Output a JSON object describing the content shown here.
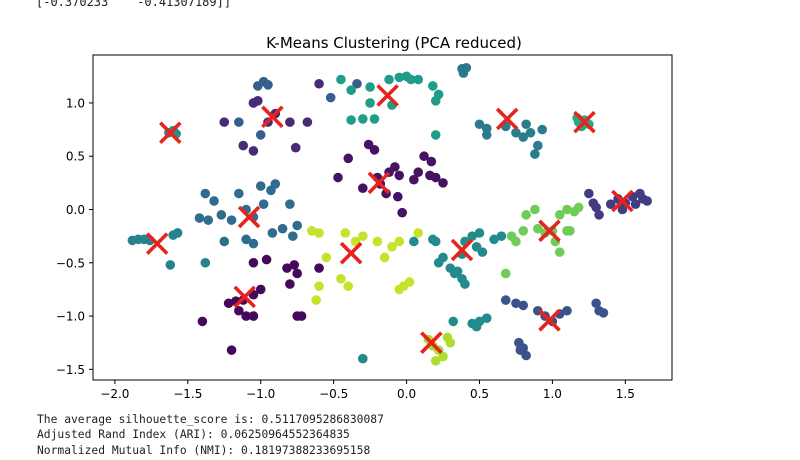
{
  "top_output": "[-0.370233    -0.41307189]]",
  "metrics": {
    "silhouette": "The average silhouette_score is: 0.5117095286830087",
    "ari": "Adjusted Rand Index (ARI): 0.06250964552364835",
    "nmi": "Normalized Mutual Info (NMI): 0.18197388233695158"
  },
  "chart_data": {
    "type": "scatter",
    "title": "K-Means Clustering (PCA reduced)",
    "xlabel": "",
    "ylabel": "",
    "xlim": [
      -2.15,
      1.82
    ],
    "ylim": [
      -1.6,
      1.45
    ],
    "x_ticks": [
      -2.0,
      -1.5,
      -1.0,
      -0.5,
      0.0,
      0.5,
      1.0,
      1.5
    ],
    "x_tick_labels": [
      "−2.0",
      "−1.5",
      "−1.0",
      "−0.5",
      "0.0",
      "0.5",
      "1.0",
      "1.5"
    ],
    "y_ticks": [
      1.0,
      0.5,
      0.0,
      -0.5,
      -1.0,
      -1.5
    ],
    "y_tick_labels": [
      "1.0",
      "0.5",
      "0.0",
      "−0.5",
      "−1.0",
      "−1.5"
    ],
    "grid": false,
    "colormap": "viridis",
    "centroid_color": "#e8231e",
    "centroids": [
      [
        -1.62,
        0.72
      ],
      [
        -0.92,
        0.87
      ],
      [
        -0.13,
        1.07
      ],
      [
        0.69,
        0.85
      ],
      [
        1.22,
        0.82
      ],
      [
        -0.19,
        0.25
      ],
      [
        -1.08,
        -0.07
      ],
      [
        -1.71,
        -0.32
      ],
      [
        -0.38,
        -0.41
      ],
      [
        0.38,
        -0.38
      ],
      [
        0.98,
        -0.2
      ],
      [
        1.48,
        0.08
      ],
      [
        -1.11,
        -0.82
      ],
      [
        0.98,
        -1.04
      ],
      [
        0.17,
        -1.25
      ]
    ],
    "points": [
      [
        -1.6,
        0.74,
        0.5
      ],
      [
        -1.63,
        0.72,
        0.5
      ],
      [
        -1.58,
        0.71,
        0.5
      ],
      [
        -1.05,
        1.0,
        0.12
      ],
      [
        -1.02,
        1.02,
        0.12
      ],
      [
        -0.95,
        0.82,
        0.12
      ],
      [
        -0.9,
        0.9,
        0.12
      ],
      [
        -1.12,
        0.6,
        0.12
      ],
      [
        -1.25,
        0.82,
        0.12
      ],
      [
        -0.8,
        0.82,
        0.12
      ],
      [
        -0.68,
        0.82,
        0.12
      ],
      [
        -0.76,
        0.58,
        0.12
      ],
      [
        -1.05,
        0.55,
        0.12
      ],
      [
        -0.6,
        1.18,
        0.12
      ],
      [
        -1.02,
        1.16,
        0.3
      ],
      [
        -0.98,
        1.2,
        0.3
      ],
      [
        -0.95,
        1.17,
        0.3
      ],
      [
        -0.52,
        1.05,
        0.3
      ],
      [
        -0.34,
        1.18,
        0.3
      ],
      [
        -1.15,
        0.82,
        0.3
      ],
      [
        -1.0,
        0.7,
        0.3
      ],
      [
        -0.45,
        1.22,
        0.55
      ],
      [
        -0.38,
        1.12,
        0.55
      ],
      [
        -0.25,
        1.0,
        0.55
      ],
      [
        -0.25,
        1.15,
        0.55
      ],
      [
        -0.12,
        1.22,
        0.55
      ],
      [
        -0.1,
        0.98,
        0.55
      ],
      [
        -0.05,
        1.24,
        0.55
      ],
      [
        0.0,
        1.25,
        0.55
      ],
      [
        0.03,
        1.22,
        0.55
      ],
      [
        0.08,
        1.22,
        0.55
      ],
      [
        0.18,
        1.16,
        0.55
      ],
      [
        0.2,
        1.02,
        0.55
      ],
      [
        0.22,
        1.08,
        0.55
      ],
      [
        -0.38,
        0.84,
        0.55
      ],
      [
        -0.3,
        0.85,
        0.55
      ],
      [
        -0.22,
        0.85,
        0.55
      ],
      [
        0.2,
        0.7,
        0.55
      ],
      [
        0.38,
        1.32,
        0.4
      ],
      [
        0.41,
        1.33,
        0.4
      ],
      [
        0.39,
        1.28,
        0.4
      ],
      [
        0.5,
        0.8,
        0.42
      ],
      [
        0.55,
        0.7,
        0.42
      ],
      [
        0.55,
        0.76,
        0.42
      ],
      [
        0.68,
        0.78,
        0.42
      ],
      [
        0.75,
        0.72,
        0.42
      ],
      [
        0.82,
        0.8,
        0.42
      ],
      [
        0.85,
        0.72,
        0.42
      ],
      [
        0.9,
        0.6,
        0.42
      ],
      [
        0.93,
        0.75,
        0.42
      ],
      [
        0.8,
        0.68,
        0.42
      ],
      [
        0.88,
        0.52,
        0.42
      ],
      [
        1.18,
        0.82,
        0.6
      ],
      [
        1.22,
        0.84,
        0.6
      ],
      [
        1.2,
        0.78,
        0.6
      ],
      [
        1.25,
        0.8,
        0.6
      ],
      [
        1.17,
        0.86,
        0.6
      ],
      [
        -0.18,
        0.24,
        0.05
      ],
      [
        -0.2,
        0.3,
        0.05
      ],
      [
        -0.12,
        0.35,
        0.05
      ],
      [
        -0.08,
        0.4,
        0.05
      ],
      [
        -0.05,
        0.32,
        0.05
      ],
      [
        0.05,
        0.28,
        0.05
      ],
      [
        0.08,
        0.35,
        0.05
      ],
      [
        0.16,
        0.32,
        0.05
      ],
      [
        0.2,
        0.3,
        0.05
      ],
      [
        0.25,
        0.25,
        0.05
      ],
      [
        -0.3,
        0.2,
        0.05
      ],
      [
        -0.14,
        0.15,
        0.05
      ],
      [
        -0.06,
        0.12,
        0.05
      ],
      [
        -0.03,
        -0.03,
        0.05
      ],
      [
        -0.22,
        0.56,
        0.05
      ],
      [
        -0.26,
        0.61,
        0.05
      ],
      [
        -0.47,
        0.3,
        0.05
      ],
      [
        -0.4,
        0.48,
        0.05
      ],
      [
        0.12,
        0.5,
        0.05
      ],
      [
        0.17,
        0.45,
        0.05
      ],
      [
        -1.38,
        0.15,
        0.35
      ],
      [
        -1.32,
        0.08,
        0.35
      ],
      [
        -1.27,
        -0.05,
        0.35
      ],
      [
        -1.2,
        -0.1,
        0.35
      ],
      [
        -1.15,
        0.15,
        0.35
      ],
      [
        -1.0,
        0.22,
        0.35
      ],
      [
        -0.93,
        0.18,
        0.35
      ],
      [
        -0.9,
        0.24,
        0.35
      ],
      [
        -1.05,
        -0.07,
        0.35
      ],
      [
        -0.98,
        0.05,
        0.35
      ],
      [
        -0.8,
        0.05,
        0.35
      ],
      [
        -0.85,
        -0.18,
        0.35
      ],
      [
        -0.75,
        -0.15,
        0.35
      ],
      [
        -1.25,
        -0.3,
        0.35
      ],
      [
        -1.1,
        -0.28,
        0.35
      ],
      [
        -1.05,
        -0.32,
        0.35
      ],
      [
        -0.92,
        -0.22,
        0.35
      ],
      [
        -0.78,
        -0.25,
        0.35
      ],
      [
        -1.36,
        -0.1,
        0.35
      ],
      [
        -1.42,
        -0.08,
        0.35
      ],
      [
        -1.1,
        0.0,
        0.35
      ],
      [
        -1.88,
        -0.29,
        0.45
      ],
      [
        -1.84,
        -0.28,
        0.45
      ],
      [
        -1.8,
        -0.28,
        0.45
      ],
      [
        -1.76,
        -0.29,
        0.45
      ],
      [
        -1.6,
        -0.24,
        0.45
      ],
      [
        -1.57,
        -0.22,
        0.45
      ],
      [
        -1.62,
        -0.52,
        0.45
      ],
      [
        -1.38,
        -0.5,
        0.45
      ],
      [
        -0.96,
        -0.47,
        0.02
      ],
      [
        -0.82,
        -0.55,
        0.02
      ],
      [
        -0.77,
        -0.52,
        0.02
      ],
      [
        -0.75,
        -0.6,
        0.02
      ],
      [
        -0.6,
        -0.55,
        0.02
      ],
      [
        -1.05,
        -0.5,
        0.02
      ],
      [
        -1.22,
        -0.88,
        0.02
      ],
      [
        -1.17,
        -0.86,
        0.02
      ],
      [
        -1.12,
        -0.85,
        0.02
      ],
      [
        -1.05,
        -0.8,
        0.02
      ],
      [
        -1.0,
        -0.75,
        0.02
      ],
      [
        -1.1,
        -1.0,
        0.02
      ],
      [
        -1.05,
        -1.0,
        0.02
      ],
      [
        -0.8,
        -0.7,
        0.02
      ],
      [
        -0.75,
        -1.0,
        0.02
      ],
      [
        -0.72,
        -1.0,
        0.02
      ],
      [
        -1.4,
        -1.05,
        0.02
      ],
      [
        -1.2,
        -1.32,
        0.02
      ],
      [
        -1.15,
        -0.95,
        0.02
      ],
      [
        -0.42,
        -0.22,
        0.92
      ],
      [
        -0.35,
        -0.3,
        0.92
      ],
      [
        -0.3,
        -0.25,
        0.92
      ],
      [
        -0.2,
        -0.3,
        0.92
      ],
      [
        -0.15,
        -0.45,
        0.92
      ],
      [
        -0.1,
        -0.35,
        0.92
      ],
      [
        -0.05,
        -0.3,
        0.92
      ],
      [
        -0.55,
        -0.45,
        0.92
      ],
      [
        -0.6,
        -0.22,
        0.92
      ],
      [
        -0.65,
        -0.2,
        0.92
      ],
      [
        -0.45,
        -0.65,
        0.92
      ],
      [
        -0.4,
        -0.72,
        0.92
      ],
      [
        -0.6,
        -0.72,
        0.92
      ],
      [
        -0.62,
        -0.85,
        0.92
      ],
      [
        -0.05,
        -0.75,
        0.92
      ],
      [
        -0.02,
        -0.72,
        0.92
      ],
      [
        0.02,
        -0.68,
        0.92
      ],
      [
        0.08,
        -0.22,
        0.92
      ],
      [
        0.05,
        -0.3,
        0.48
      ],
      [
        0.2,
        -0.3,
        0.48
      ],
      [
        0.22,
        -0.5,
        0.48
      ],
      [
        0.3,
        -0.55,
        0.48
      ],
      [
        0.33,
        -0.6,
        0.48
      ],
      [
        0.35,
        -0.58,
        0.48
      ],
      [
        0.38,
        -0.65,
        0.48
      ],
      [
        0.4,
        -0.3,
        0.48
      ],
      [
        0.45,
        -0.25,
        0.48
      ],
      [
        0.48,
        -0.35,
        0.48
      ],
      [
        0.5,
        -0.22,
        0.48
      ],
      [
        0.52,
        -0.4,
        0.48
      ],
      [
        0.18,
        -0.28,
        0.48
      ],
      [
        0.25,
        -0.45,
        0.48
      ],
      [
        0.38,
        -0.42,
        0.48
      ],
      [
        0.6,
        -0.28,
        0.48
      ],
      [
        0.65,
        -0.25,
        0.48
      ],
      [
        0.4,
        -0.7,
        0.48
      ],
      [
        0.32,
        -1.05,
        0.48
      ],
      [
        0.45,
        -1.07,
        0.48
      ],
      [
        0.5,
        -1.05,
        0.48
      ],
      [
        0.48,
        -1.1,
        0.48
      ],
      [
        0.55,
        -1.02,
        0.48
      ],
      [
        -0.3,
        -1.4,
        0.48
      ],
      [
        0.82,
        -0.05,
        0.78
      ],
      [
        0.88,
        0.0,
        0.78
      ],
      [
        0.9,
        -0.18,
        0.78
      ],
      [
        0.95,
        -0.22,
        0.78
      ],
      [
        1.0,
        -0.2,
        0.78
      ],
      [
        1.02,
        -0.3,
        0.78
      ],
      [
        0.8,
        -0.2,
        0.78
      ],
      [
        0.75,
        -0.3,
        0.78
      ],
      [
        0.72,
        -0.25,
        0.78
      ],
      [
        1.05,
        -0.05,
        0.78
      ],
      [
        1.1,
        -0.2,
        0.78
      ],
      [
        1.12,
        -0.2,
        0.78
      ],
      [
        1.15,
        -0.02,
        0.78
      ],
      [
        1.18,
        0.02,
        0.78
      ],
      [
        1.05,
        -0.4,
        0.78
      ],
      [
        0.68,
        -0.6,
        0.78
      ],
      [
        1.1,
        0.0,
        0.78
      ],
      [
        1.4,
        0.05,
        0.18
      ],
      [
        1.45,
        0.1,
        0.18
      ],
      [
        1.5,
        0.06,
        0.18
      ],
      [
        1.55,
        0.12,
        0.18
      ],
      [
        1.57,
        0.05,
        0.18
      ],
      [
        1.6,
        0.15,
        0.18
      ],
      [
        1.62,
        0.1,
        0.18
      ],
      [
        1.65,
        0.08,
        0.18
      ],
      [
        1.3,
        0.02,
        0.18
      ],
      [
        1.28,
        0.06,
        0.18
      ],
      [
        1.25,
        0.15,
        0.18
      ],
      [
        1.32,
        -0.05,
        0.18
      ],
      [
        1.48,
        0.0,
        0.18
      ],
      [
        0.68,
        -0.85,
        0.25
      ],
      [
        0.75,
        -0.88,
        0.25
      ],
      [
        0.8,
        -0.9,
        0.25
      ],
      [
        0.9,
        -0.95,
        0.25
      ],
      [
        0.95,
        -1.0,
        0.25
      ],
      [
        1.0,
        -1.05,
        0.25
      ],
      [
        1.05,
        -0.98,
        0.25
      ],
      [
        1.1,
        -0.95,
        0.25
      ],
      [
        1.3,
        -0.88,
        0.25
      ],
      [
        1.32,
        -0.95,
        0.25
      ],
      [
        1.35,
        -0.97,
        0.25
      ],
      [
        0.77,
        -1.25,
        0.25
      ],
      [
        0.8,
        -1.3,
        0.25
      ],
      [
        0.78,
        -1.32,
        0.25
      ],
      [
        0.82,
        -1.37,
        0.25
      ],
      [
        0.15,
        -1.22,
        0.88
      ],
      [
        0.18,
        -1.28,
        0.88
      ],
      [
        0.22,
        -1.32,
        0.88
      ],
      [
        0.28,
        -1.2,
        0.88
      ],
      [
        0.3,
        -1.25,
        0.88
      ],
      [
        0.25,
        -1.38,
        0.88
      ],
      [
        0.2,
        -1.42,
        0.88
      ]
    ]
  }
}
